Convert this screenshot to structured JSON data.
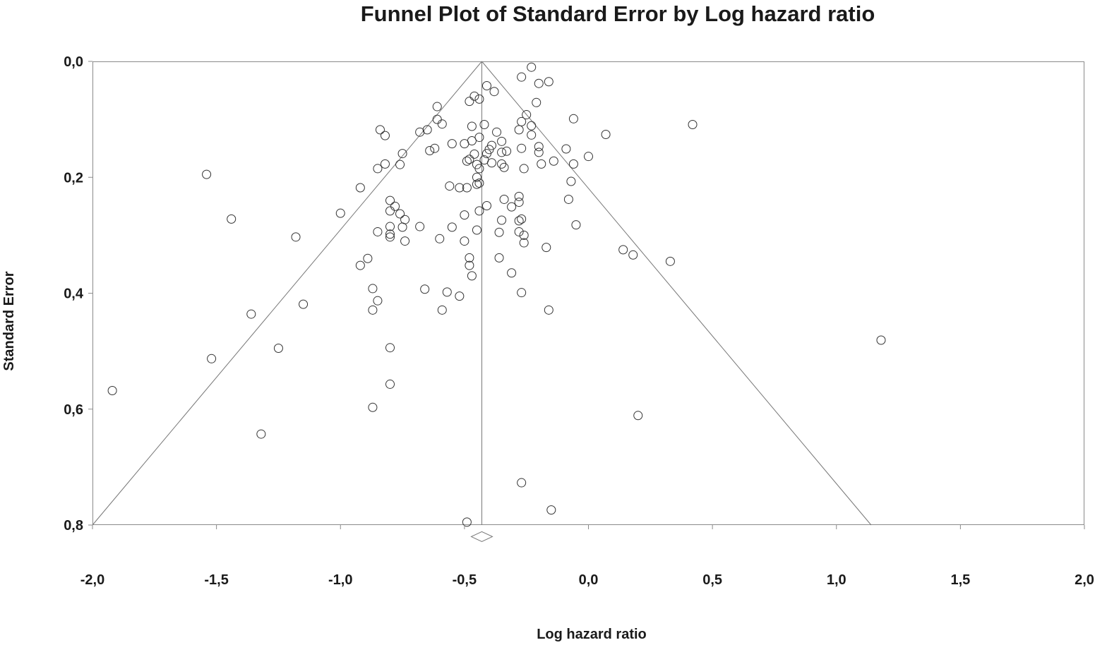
{
  "chart_data": {
    "type": "scatter",
    "title": "Funnel Plot of Standard Error by Log hazard ratio",
    "xlabel": "Log hazard ratio",
    "ylabel": "Standard Error",
    "xlim": [
      -2.0,
      2.0
    ],
    "ylim": [
      0.0,
      0.8
    ],
    "y_inverted": true,
    "grid": false,
    "x_ticks": [
      -2.0,
      -1.5,
      -1.0,
      -0.5,
      0.0,
      0.5,
      1.0,
      1.5,
      2.0
    ],
    "x_tick_labels": [
      "-2,0",
      "-1,5",
      "-1,0",
      "-0,5",
      "0,0",
      "0,5",
      "1,0",
      "1,5",
      "2,0"
    ],
    "y_ticks": [
      0.0,
      0.2,
      0.4,
      0.6,
      0.8
    ],
    "y_tick_labels": [
      "0,0",
      "0,2",
      "0,4",
      "0,6",
      "0,8"
    ],
    "pooled_estimate": -0.43,
    "funnel_apex": [
      -0.43,
      0.0
    ],
    "funnel_base": [
      [
        -2.0,
        0.8
      ],
      [
        1.14,
        0.8
      ]
    ],
    "diamond": {
      "x": -0.43,
      "y": 0.82
    },
    "points": [
      [
        -0.23,
        0.01
      ],
      [
        -0.27,
        0.027
      ],
      [
        -0.2,
        0.038
      ],
      [
        -0.16,
        0.035
      ],
      [
        -0.41,
        0.042
      ],
      [
        -0.38,
        0.052
      ],
      [
        -0.46,
        0.06
      ],
      [
        -0.44,
        0.065
      ],
      [
        -0.48,
        0.069
      ],
      [
        -0.21,
        0.071
      ],
      [
        -0.61,
        0.078
      ],
      [
        -0.25,
        0.092
      ],
      [
        -0.61,
        0.1
      ],
      [
        -0.06,
        0.099
      ],
      [
        -0.27,
        0.104
      ],
      [
        -0.59,
        0.108
      ],
      [
        -0.42,
        0.109
      ],
      [
        -0.47,
        0.112
      ],
      [
        -0.23,
        0.111
      ],
      [
        0.42,
        0.109
      ],
      [
        -0.84,
        0.118
      ],
      [
        -0.65,
        0.118
      ],
      [
        -0.68,
        0.122
      ],
      [
        -0.28,
        0.118
      ],
      [
        -0.37,
        0.122
      ],
      [
        -0.82,
        0.128
      ],
      [
        -0.23,
        0.127
      ],
      [
        0.07,
        0.126
      ],
      [
        -0.44,
        0.131
      ],
      [
        -0.47,
        0.137
      ],
      [
        -0.35,
        0.138
      ],
      [
        -0.55,
        0.142
      ],
      [
        -0.5,
        0.142
      ],
      [
        -0.39,
        0.145
      ],
      [
        -0.2,
        0.147
      ],
      [
        -0.27,
        0.15
      ],
      [
        -0.62,
        0.15
      ],
      [
        -0.64,
        0.154
      ],
      [
        -0.4,
        0.152
      ],
      [
        -0.09,
        0.151
      ],
      [
        -0.33,
        0.155
      ],
      [
        -0.35,
        0.157
      ],
      [
        -0.2,
        0.157
      ],
      [
        -0.75,
        0.159
      ],
      [
        -0.46,
        0.16
      ],
      [
        -0.41,
        0.159
      ],
      [
        -0.48,
        0.169
      ],
      [
        0.0,
        0.164
      ],
      [
        -0.42,
        0.17
      ],
      [
        -0.14,
        0.172
      ],
      [
        -0.49,
        0.172
      ],
      [
        -0.76,
        0.178
      ],
      [
        -0.82,
        0.177
      ],
      [
        -0.35,
        0.177
      ],
      [
        -0.19,
        0.177
      ],
      [
        -0.06,
        0.177
      ],
      [
        -0.45,
        0.178
      ],
      [
        -0.39,
        0.175
      ],
      [
        -0.44,
        0.185
      ],
      [
        -0.34,
        0.183
      ],
      [
        -0.26,
        0.185
      ],
      [
        -0.85,
        0.185
      ],
      [
        -1.54,
        0.195
      ],
      [
        -0.45,
        0.2
      ],
      [
        -0.07,
        0.207
      ],
      [
        -0.44,
        0.21
      ],
      [
        -0.45,
        0.212
      ],
      [
        -0.56,
        0.215
      ],
      [
        -0.92,
        0.218
      ],
      [
        -0.52,
        0.218
      ],
      [
        -0.49,
        0.218
      ],
      [
        -0.28,
        0.233
      ],
      [
        -0.34,
        0.238
      ],
      [
        -0.08,
        0.238
      ],
      [
        -0.8,
        0.24
      ],
      [
        -0.28,
        0.243
      ],
      [
        -0.41,
        0.249
      ],
      [
        -0.78,
        0.25
      ],
      [
        -0.31,
        0.251
      ],
      [
        -0.8,
        0.258
      ],
      [
        -0.44,
        0.258
      ],
      [
        -1.0,
        0.262
      ],
      [
        -0.76,
        0.263
      ],
      [
        -0.5,
        0.265
      ],
      [
        -1.44,
        0.272
      ],
      [
        -0.35,
        0.274
      ],
      [
        -0.28,
        0.275
      ],
      [
        -0.74,
        0.273
      ],
      [
        -0.27,
        0.272
      ],
      [
        -0.05,
        0.282
      ],
      [
        -0.8,
        0.285
      ],
      [
        -0.75,
        0.286
      ],
      [
        -0.68,
        0.285
      ],
      [
        -0.55,
        0.286
      ],
      [
        -0.45,
        0.291
      ],
      [
        -0.85,
        0.294
      ],
      [
        -0.36,
        0.295
      ],
      [
        -0.28,
        0.294
      ],
      [
        -0.8,
        0.298
      ],
      [
        -0.26,
        0.3
      ],
      [
        -0.8,
        0.303
      ],
      [
        -1.18,
        0.303
      ],
      [
        -0.6,
        0.306
      ],
      [
        -0.74,
        0.31
      ],
      [
        -0.5,
        0.31
      ],
      [
        -0.26,
        0.313
      ],
      [
        -0.17,
        0.321
      ],
      [
        0.14,
        0.325
      ],
      [
        0.18,
        0.334
      ],
      [
        -0.89,
        0.34
      ],
      [
        -0.36,
        0.339
      ],
      [
        -0.48,
        0.339
      ],
      [
        0.33,
        0.345
      ],
      [
        -0.92,
        0.352
      ],
      [
        -0.48,
        0.352
      ],
      [
        -0.31,
        0.365
      ],
      [
        -0.47,
        0.37
      ],
      [
        -0.87,
        0.392
      ],
      [
        -0.66,
        0.393
      ],
      [
        -0.57,
        0.398
      ],
      [
        -0.27,
        0.399
      ],
      [
        -0.52,
        0.405
      ],
      [
        -0.85,
        0.413
      ],
      [
        -1.15,
        0.419
      ],
      [
        -0.87,
        0.429
      ],
      [
        -0.59,
        0.429
      ],
      [
        -0.16,
        0.429
      ],
      [
        -1.36,
        0.436
      ],
      [
        1.18,
        0.481
      ],
      [
        -1.25,
        0.495
      ],
      [
        -0.8,
        0.494
      ],
      [
        -1.52,
        0.513
      ],
      [
        -0.8,
        0.557
      ],
      [
        -1.92,
        0.568
      ],
      [
        -0.87,
        0.597
      ],
      [
        0.2,
        0.611
      ],
      [
        -1.32,
        0.643
      ],
      [
        -0.27,
        0.727
      ],
      [
        -0.15,
        0.774
      ],
      [
        -0.49,
        0.795
      ]
    ]
  }
}
